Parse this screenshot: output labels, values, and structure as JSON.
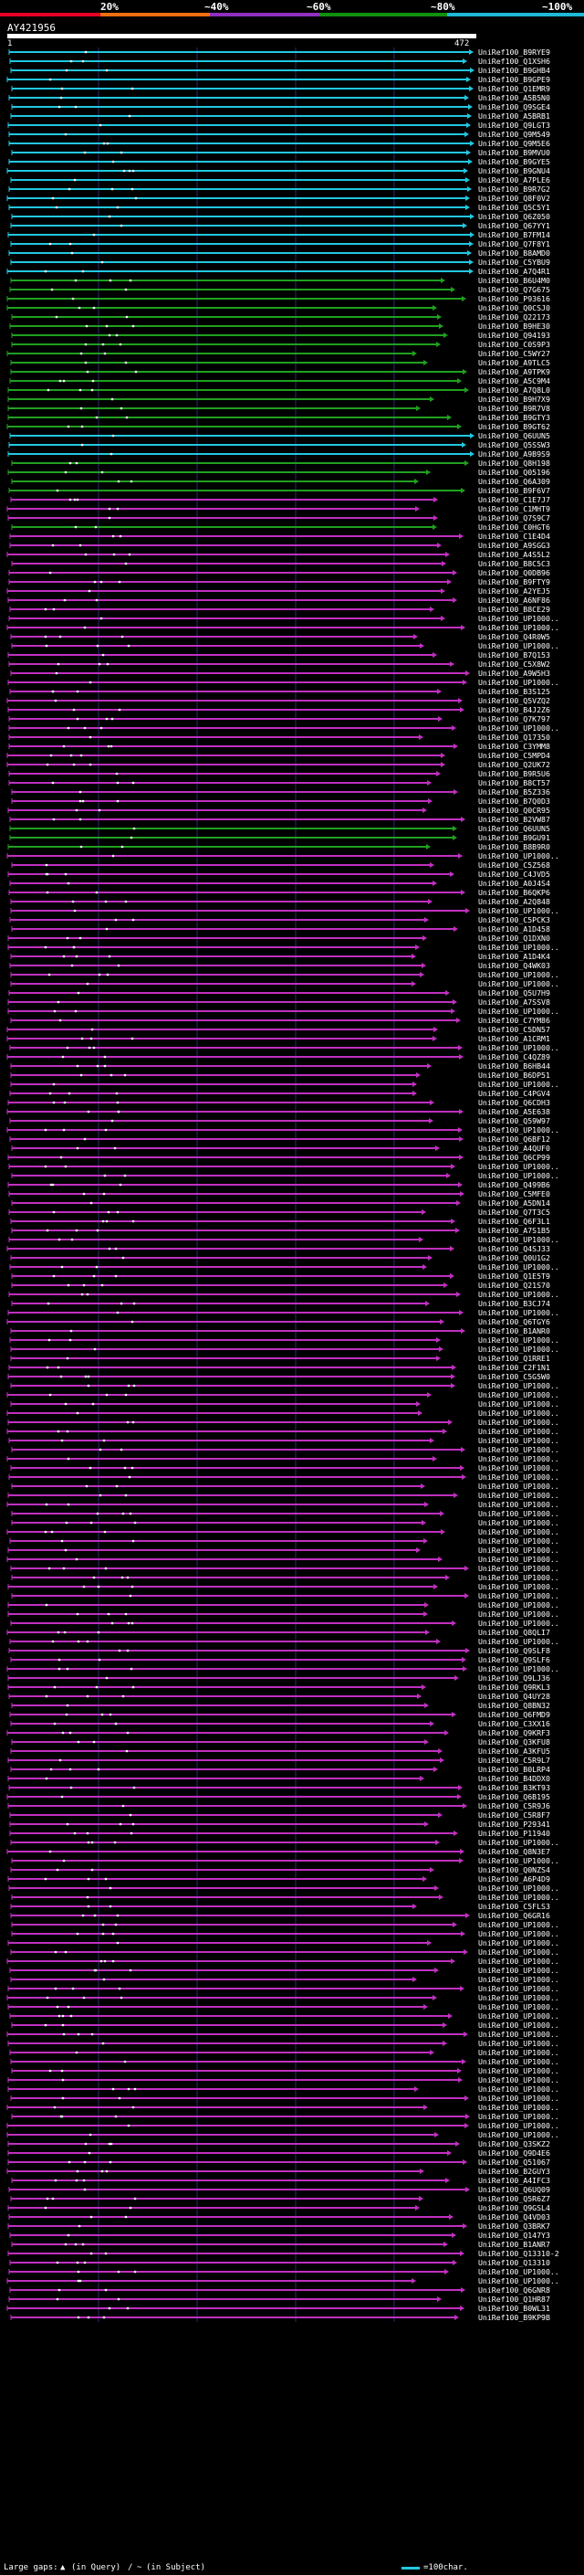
{
  "legend": {
    "percent_labels": [
      "20%",
      "~40%",
      "~60%",
      "~80%",
      "~100%"
    ],
    "colors": [
      "#e60026",
      "#f07010",
      "#9030c0",
      "#109010",
      "#20b8d8"
    ]
  },
  "query": {
    "id": "AY421956",
    "start": "1",
    "end": "472"
  },
  "track_colors": {
    "cyan": "#22c8e0",
    "green": "#20a020",
    "magenta": "#c030c0",
    "grid": "#2a2a70"
  },
  "hits": [
    {
      "label": "UniRef100_B9RYE9",
      "color": "cyan"
    },
    {
      "label": "UniRef100_Q1XSH6",
      "color": "cyan"
    },
    {
      "label": "UniRef100_B9GHB4",
      "color": "cyan"
    },
    {
      "label": "UniRef100_B9GPE9",
      "color": "cyan"
    },
    {
      "label": "UniRef100_Q1EMR9",
      "color": "cyan"
    },
    {
      "label": "UniRef100_A5B5N0",
      "color": "cyan"
    },
    {
      "label": "UniRef100_Q9SGE4",
      "color": "cyan"
    },
    {
      "label": "UniRef100_A5BRB1",
      "color": "cyan"
    },
    {
      "label": "UniRef100_Q9LGT3",
      "color": "cyan"
    },
    {
      "label": "UniRef100_Q9M549",
      "color": "cyan"
    },
    {
      "label": "UniRef100_Q9M5E6",
      "color": "cyan"
    },
    {
      "label": "UniRef100_B9MVU0",
      "color": "cyan"
    },
    {
      "label": "UniRef100_B9GYE5",
      "color": "cyan"
    },
    {
      "label": "UniRef100_B9GNU4",
      "color": "cyan"
    },
    {
      "label": "UniRef100_A7PLE6",
      "color": "cyan"
    },
    {
      "label": "UniRef100_B9R7G2",
      "color": "cyan"
    },
    {
      "label": "UniRef100_Q8F0V2",
      "color": "cyan"
    },
    {
      "label": "UniRef100_Q5C5Y1",
      "color": "cyan"
    },
    {
      "label": "UniRef100_Q6Z050",
      "color": "cyan"
    },
    {
      "label": "UniRef100_Q67YY1",
      "color": "cyan"
    },
    {
      "label": "UniRef100_B7FM14",
      "color": "cyan"
    },
    {
      "label": "UniRef100_Q7F8Y1",
      "color": "cyan"
    },
    {
      "label": "UniRef100_B8AMD0",
      "color": "cyan"
    },
    {
      "label": "UniRef100_C5YBU9",
      "color": "cyan"
    },
    {
      "label": "UniRef100_A7Q4R1",
      "color": "cyan"
    },
    {
      "label": "UniRef100_B6U4M0",
      "color": "green"
    },
    {
      "label": "UniRef100_Q7G675",
      "color": "green"
    },
    {
      "label": "UniRef100_P93616",
      "color": "green"
    },
    {
      "label": "UniRef100_Q0CSJ0",
      "color": "green"
    },
    {
      "label": "UniRef100_Q22173",
      "color": "green"
    },
    {
      "label": "UniRef100_B9HE30",
      "color": "green"
    },
    {
      "label": "UniRef100_Q94193",
      "color": "green"
    },
    {
      "label": "UniRef100_C0S9P3",
      "color": "green"
    },
    {
      "label": "UniRef100_C5WY27",
      "color": "green"
    },
    {
      "label": "UniRef100_A9TLC5",
      "color": "green"
    },
    {
      "label": "UniRef100_A9TPK9",
      "color": "green"
    },
    {
      "label": "UniRef100_A5C9M4",
      "color": "green"
    },
    {
      "label": "UniRef100_A7Q8L0",
      "color": "green"
    },
    {
      "label": "UniRef100_B9H7X9",
      "color": "green"
    },
    {
      "label": "UniRef100_B9R7V8",
      "color": "green"
    },
    {
      "label": "UniRef100_B9GTY3",
      "color": "green"
    },
    {
      "label": "UniRef100_B9GT62",
      "color": "green"
    },
    {
      "label": "UniRef100_Q6UUN5",
      "color": "cyan"
    },
    {
      "label": "UniRef100_Q5SSW3",
      "color": "cyan"
    },
    {
      "label": "UniRef100_A9B9S9",
      "color": "cyan"
    },
    {
      "label": "UniRef100_Q8H198",
      "color": "green"
    },
    {
      "label": "UniRef100_Q05196",
      "color": "green"
    },
    {
      "label": "UniRef100_Q6A309",
      "color": "green"
    },
    {
      "label": "UniRef100_B9F6V7",
      "color": "green"
    },
    {
      "label": "UniRef100_C1E7J7",
      "color": "magenta"
    },
    {
      "label": "UniRef100_C1MHT9",
      "color": "magenta"
    },
    {
      "label": "UniRef100_Q7S9C7",
      "color": "magenta"
    },
    {
      "label": "UniRef100_C0HGT6",
      "color": "green"
    },
    {
      "label": "UniRef100_C1E4D4",
      "color": "magenta"
    },
    {
      "label": "UniRef100_A9SGG3",
      "color": "magenta"
    },
    {
      "label": "UniRef100_A4S5L2",
      "color": "magenta"
    },
    {
      "label": "UniRef100_B8C5C3",
      "color": "magenta"
    },
    {
      "label": "UniRef100_Q0DB96",
      "color": "magenta"
    },
    {
      "label": "UniRef100_B9FTY9",
      "color": "magenta"
    },
    {
      "label": "UniRef100_A2YEJ5",
      "color": "magenta"
    },
    {
      "label": "UniRef100_A6NF86",
      "color": "magenta"
    },
    {
      "label": "UniRef100_B8CE29",
      "color": "magenta"
    },
    {
      "label": "UniRef100_UP1000..",
      "color": "magenta"
    },
    {
      "label": "UniRef100_UP1000..",
      "color": "magenta"
    },
    {
      "label": "UniRef100_Q4R0W5",
      "color": "magenta"
    },
    {
      "label": "UniRef100_UP1000..",
      "color": "magenta"
    },
    {
      "label": "UniRef100_B7Q153",
      "color": "magenta"
    },
    {
      "label": "UniRef100_C5X8W2",
      "color": "magenta"
    },
    {
      "label": "UniRef100_A9W5H3",
      "color": "magenta"
    },
    {
      "label": "UniRef100_UP1000..",
      "color": "magenta"
    },
    {
      "label": "UniRef100_B3S125",
      "color": "magenta"
    },
    {
      "label": "UniRef100_Q5VZQ2",
      "color": "magenta"
    },
    {
      "label": "UniRef100_B4J2Z6",
      "color": "magenta"
    },
    {
      "label": "UniRef100_Q7K797",
      "color": "magenta"
    },
    {
      "label": "UniRef100_UP1000..",
      "color": "magenta"
    },
    {
      "label": "UniRef100_Q17350",
      "color": "magenta"
    },
    {
      "label": "UniRef100_C3YMM8",
      "color": "magenta"
    },
    {
      "label": "UniRef100_C5MPD4",
      "color": "magenta"
    },
    {
      "label": "UniRef100_Q2UK72",
      "color": "magenta"
    },
    {
      "label": "UniRef100_B9R5U6",
      "color": "magenta"
    },
    {
      "label": "UniRef100_B8CT57",
      "color": "magenta"
    },
    {
      "label": "UniRef100_B5Z336",
      "color": "magenta"
    },
    {
      "label": "UniRef100_B7Q0D3",
      "color": "magenta"
    },
    {
      "label": "UniRef100_Q0CR95",
      "color": "magenta"
    },
    {
      "label": "UniRef100_B2VW87",
      "color": "magenta"
    },
    {
      "label": "UniRef100_Q6UUN5",
      "color": "green"
    },
    {
      "label": "UniRef100_B9GU91",
      "color": "green"
    },
    {
      "label": "UniRef100_B8B9R0",
      "color": "green"
    },
    {
      "label": "UniRef100_UP1000..",
      "color": "magenta"
    },
    {
      "label": "UniRef100_C5Z568",
      "color": "magenta"
    },
    {
      "label": "UniRef100_C4JVD5",
      "color": "magenta"
    },
    {
      "label": "UniRef100_A0J4S4",
      "color": "magenta"
    },
    {
      "label": "UniRef100_B6QKP6",
      "color": "magenta"
    },
    {
      "label": "UniRef100_A2Q848",
      "color": "magenta"
    },
    {
      "label": "UniRef100_UP1000..",
      "color": "magenta"
    },
    {
      "label": "UniRef100_C5PCK3",
      "color": "magenta"
    },
    {
      "label": "UniRef100_A1D458",
      "color": "magenta"
    },
    {
      "label": "UniRef100_Q1DXN0",
      "color": "magenta"
    },
    {
      "label": "UniRef100_UP1000..",
      "color": "magenta"
    },
    {
      "label": "UniRef100_A1D4K4",
      "color": "magenta"
    },
    {
      "label": "UniRef100_Q4WK03",
      "color": "magenta"
    },
    {
      "label": "UniRef100_UP1000..",
      "color": "magenta"
    },
    {
      "label": "UniRef100_UP1000..",
      "color": "magenta"
    },
    {
      "label": "UniRef100_Q5U7H9",
      "color": "magenta"
    },
    {
      "label": "UniRef100_A7SSV8",
      "color": "magenta"
    },
    {
      "label": "UniRef100_UP1000..",
      "color": "magenta"
    },
    {
      "label": "UniRef100_C7YM86",
      "color": "magenta"
    },
    {
      "label": "UniRef100_C5DN57",
      "color": "magenta"
    },
    {
      "label": "UniRef100_A1CRM1",
      "color": "magenta"
    },
    {
      "label": "UniRef100_UP1000..",
      "color": "magenta"
    },
    {
      "label": "UniRef100_C4QZ89",
      "color": "magenta"
    },
    {
      "label": "UniRef100_B6HB44",
      "color": "magenta"
    },
    {
      "label": "UniRef100_B6DP51",
      "color": "magenta"
    },
    {
      "label": "UniRef100_UP1000..",
      "color": "magenta"
    },
    {
      "label": "UniRef100_C4PGV4",
      "color": "magenta"
    },
    {
      "label": "UniRef100_Q6CDH3",
      "color": "magenta"
    },
    {
      "label": "UniRef100_A5E638",
      "color": "magenta"
    },
    {
      "label": "UniRef100_Q59W97",
      "color": "magenta"
    },
    {
      "label": "UniRef100_UP1000..",
      "color": "magenta"
    },
    {
      "label": "UniRef100_Q6BF12",
      "color": "magenta"
    },
    {
      "label": "UniRef100_A4QUF0",
      "color": "magenta"
    },
    {
      "label": "UniRef100_Q6CP99",
      "color": "magenta"
    },
    {
      "label": "UniRef100_UP1000..",
      "color": "magenta"
    },
    {
      "label": "UniRef100_UP1000..",
      "color": "magenta"
    },
    {
      "label": "UniRef100_Q499B6",
      "color": "magenta"
    },
    {
      "label": "UniRef100_C5MFE0",
      "color": "magenta"
    },
    {
      "label": "UniRef100_A5DN14",
      "color": "magenta"
    },
    {
      "label": "UniRef100_Q7T3C5",
      "color": "magenta"
    },
    {
      "label": "UniRef100_Q6F3L1",
      "color": "magenta"
    },
    {
      "label": "UniRef100_A7S1B5",
      "color": "magenta"
    },
    {
      "label": "UniRef100_UP1000..",
      "color": "magenta"
    },
    {
      "label": "UniRef100_Q4SJ33",
      "color": "magenta"
    },
    {
      "label": "UniRef100_Q0U1G2",
      "color": "magenta"
    },
    {
      "label": "UniRef100_UP1000..",
      "color": "magenta"
    },
    {
      "label": "UniRef100_Q1E5T9",
      "color": "magenta"
    },
    {
      "label": "UniRef100_Q21S70",
      "color": "magenta"
    },
    {
      "label": "UniRef100_UP1000..",
      "color": "magenta"
    },
    {
      "label": "UniRef100_B3CJ74",
      "color": "magenta"
    },
    {
      "label": "UniRef100_UP1000..",
      "color": "magenta"
    },
    {
      "label": "UniRef100_Q6TGY6",
      "color": "magenta"
    },
    {
      "label": "UniRef100_B1ANR0",
      "color": "magenta"
    },
    {
      "label": "UniRef100_UP1000..",
      "color": "magenta"
    },
    {
      "label": "UniRef100_UP1000..",
      "color": "magenta"
    },
    {
      "label": "UniRef100_Q1RRE1",
      "color": "magenta"
    },
    {
      "label": "UniRef100_C2F1N1",
      "color": "magenta"
    },
    {
      "label": "UniRef100_C5G5W0",
      "color": "magenta"
    },
    {
      "label": "UniRef100_UP1000..",
      "color": "magenta"
    },
    {
      "label": "UniRef100_UP1000..",
      "color": "magenta"
    },
    {
      "label": "UniRef100_UP1000..",
      "color": "magenta"
    },
    {
      "label": "UniRef100_UP1000..",
      "color": "magenta"
    },
    {
      "label": "UniRef100_UP1000..",
      "color": "magenta"
    },
    {
      "label": "UniRef100_UP1000..",
      "color": "magenta"
    },
    {
      "label": "UniRef100_UP1000..",
      "color": "magenta"
    },
    {
      "label": "UniRef100_UP1000..",
      "color": "magenta"
    },
    {
      "label": "UniRef100_UP1000..",
      "color": "magenta"
    },
    {
      "label": "UniRef100_UP1000..",
      "color": "magenta"
    },
    {
      "label": "UniRef100_UP1000..",
      "color": "magenta"
    },
    {
      "label": "UniRef100_UP1000..",
      "color": "magenta"
    },
    {
      "label": "UniRef100_UP1000..",
      "color": "magenta"
    },
    {
      "label": "UniRef100_UP1000..",
      "color": "magenta"
    },
    {
      "label": "UniRef100_UP1000..",
      "color": "magenta"
    },
    {
      "label": "UniRef100_UP1000..",
      "color": "magenta"
    },
    {
      "label": "UniRef100_UP1000..",
      "color": "magenta"
    },
    {
      "label": "UniRef100_UP1000..",
      "color": "magenta"
    },
    {
      "label": "UniRef100_UP1000..",
      "color": "magenta"
    },
    {
      "label": "UniRef100_UP1000..",
      "color": "magenta"
    },
    {
      "label": "UniRef100_UP1000..",
      "color": "magenta"
    },
    {
      "label": "UniRef100_UP1000..",
      "color": "magenta"
    },
    {
      "label": "UniRef100_UP1000..",
      "color": "magenta"
    },
    {
      "label": "UniRef100_UP1000..",
      "color": "magenta"
    },
    {
      "label": "UniRef100_UP1000..",
      "color": "magenta"
    },
    {
      "label": "UniRef100_UP1000..",
      "color": "magenta"
    },
    {
      "label": "UniRef100_UP1000..",
      "color": "magenta"
    },
    {
      "label": "UniRef100_Q8QLI7",
      "color": "magenta"
    },
    {
      "label": "UniRef100_UP1000..",
      "color": "magenta"
    },
    {
      "label": "UniRef100_Q9SLF8",
      "color": "magenta"
    },
    {
      "label": "UniRef100_Q9SLF6",
      "color": "magenta"
    },
    {
      "label": "UniRef100_UP1000..",
      "color": "magenta"
    },
    {
      "label": "UniRef100_Q9LJ36",
      "color": "magenta"
    },
    {
      "label": "UniRef100_Q9RKL3",
      "color": "magenta"
    },
    {
      "label": "UniRef100_Q4UY28",
      "color": "magenta"
    },
    {
      "label": "UniRef100_Q8BN32",
      "color": "magenta"
    },
    {
      "label": "UniRef100_Q6FMD9",
      "color": "magenta"
    },
    {
      "label": "UniRef100_C3XX16",
      "color": "magenta"
    },
    {
      "label": "UniRef100_Q9KRF3",
      "color": "magenta"
    },
    {
      "label": "UniRef100_Q3KFU8",
      "color": "magenta"
    },
    {
      "label": "UniRef100_A3KFU5",
      "color": "magenta"
    },
    {
      "label": "UniRef100_C5R9L7",
      "color": "magenta"
    },
    {
      "label": "UniRef100_B0LRP4",
      "color": "magenta"
    },
    {
      "label": "UniRef100_B4DDX0",
      "color": "magenta"
    },
    {
      "label": "UniRef100_B3KT93",
      "color": "magenta"
    },
    {
      "label": "UniRef100_Q6B195",
      "color": "magenta"
    },
    {
      "label": "UniRef100_C5R9J6",
      "color": "magenta"
    },
    {
      "label": "UniRef100_C5R8F7",
      "color": "magenta"
    },
    {
      "label": "UniRef100_P29341",
      "color": "magenta"
    },
    {
      "label": "UniRef100_P11940",
      "color": "magenta"
    },
    {
      "label": "UniRef100_UP1000..",
      "color": "magenta"
    },
    {
      "label": "UniRef100_Q8N3E7",
      "color": "magenta"
    },
    {
      "label": "UniRef100_UP1000..",
      "color": "magenta"
    },
    {
      "label": "UniRef100_Q0NZS4",
      "color": "magenta"
    },
    {
      "label": "UniRef100_A6P4D9",
      "color": "magenta"
    },
    {
      "label": "UniRef100_UP1000..",
      "color": "magenta"
    },
    {
      "label": "UniRef100_UP1000..",
      "color": "magenta"
    },
    {
      "label": "UniRef100_C5FLS3",
      "color": "magenta"
    },
    {
      "label": "UniRef100_Q6GR16",
      "color": "magenta"
    },
    {
      "label": "UniRef100_UP1000..",
      "color": "magenta"
    },
    {
      "label": "UniRef100_UP1000..",
      "color": "magenta"
    },
    {
      "label": "UniRef100_UP1000..",
      "color": "magenta"
    },
    {
      "label": "UniRef100_UP1000..",
      "color": "magenta"
    },
    {
      "label": "UniRef100_UP1000..",
      "color": "magenta"
    },
    {
      "label": "UniRef100_UP1000..",
      "color": "magenta"
    },
    {
      "label": "UniRef100_UP1000..",
      "color": "magenta"
    },
    {
      "label": "UniRef100_UP1000..",
      "color": "magenta"
    },
    {
      "label": "UniRef100_UP1000..",
      "color": "magenta"
    },
    {
      "label": "UniRef100_UP1000..",
      "color": "magenta"
    },
    {
      "label": "UniRef100_UP1000..",
      "color": "magenta"
    },
    {
      "label": "UniRef100_UP1000..",
      "color": "magenta"
    },
    {
      "label": "UniRef100_UP1000..",
      "color": "magenta"
    },
    {
      "label": "UniRef100_UP1000..",
      "color": "magenta"
    },
    {
      "label": "UniRef100_UP1000..",
      "color": "magenta"
    },
    {
      "label": "UniRef100_UP1000..",
      "color": "magenta"
    },
    {
      "label": "UniRef100_UP1000..",
      "color": "magenta"
    },
    {
      "label": "UniRef100_UP1000..",
      "color": "magenta"
    },
    {
      "label": "UniRef100_UP1000..",
      "color": "magenta"
    },
    {
      "label": "UniRef100_UP1000..",
      "color": "magenta"
    },
    {
      "label": "UniRef100_UP1000..",
      "color": "magenta"
    },
    {
      "label": "UniRef100_UP1000..",
      "color": "magenta"
    },
    {
      "label": "UniRef100_UP1000..",
      "color": "magenta"
    },
    {
      "label": "UniRef100_UP1000..",
      "color": "magenta"
    },
    {
      "label": "UniRef100_Q3SKZ2",
      "color": "magenta"
    },
    {
      "label": "UniRef100_Q9D4E6",
      "color": "magenta"
    },
    {
      "label": "UniRef100_Q51067",
      "color": "magenta"
    },
    {
      "label": "UniRef100_B2GUY3",
      "color": "magenta"
    },
    {
      "label": "UniRef100_A4IFC3",
      "color": "magenta"
    },
    {
      "label": "UniRef100_Q6UQ09",
      "color": "magenta"
    },
    {
      "label": "UniRef100_Q5R6Z7",
      "color": "magenta"
    },
    {
      "label": "UniRef100_Q9GSL4",
      "color": "magenta"
    },
    {
      "label": "UniRef100_Q4VD03",
      "color": "magenta"
    },
    {
      "label": "UniRef100_Q3BRK7",
      "color": "magenta"
    },
    {
      "label": "UniRef100_Q147Y3",
      "color": "magenta"
    },
    {
      "label": "UniRef100_B1ANR7",
      "color": "magenta"
    },
    {
      "label": "UniRef100_Q13310-2",
      "color": "magenta"
    },
    {
      "label": "UniRef100_Q13310",
      "color": "magenta"
    },
    {
      "label": "UniRef100_UP1000..",
      "color": "magenta"
    },
    {
      "label": "UniRef100_UP1000..",
      "color": "magenta"
    },
    {
      "label": "UniRef100_Q6GNR8",
      "color": "magenta"
    },
    {
      "label": "UniRef100_Q1HR87",
      "color": "magenta"
    },
    {
      "label": "UniRef100_B0WL31",
      "color": "magenta"
    },
    {
      "label": "UniRef100_B9KP9B",
      "color": "magenta"
    }
  ],
  "footer": {
    "large_gaps_label": "Large gaps:",
    "query_gap": "(in Query)",
    "subject_gap": "(in Subject)",
    "scale_label": "=100char."
  }
}
